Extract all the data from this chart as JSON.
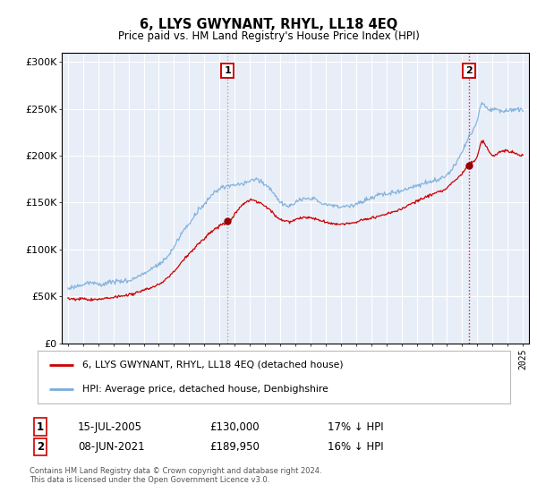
{
  "title": "6, LLYS GWYNANT, RHYL, LL18 4EQ",
  "subtitle": "Price paid vs. HM Land Registry's House Price Index (HPI)",
  "legend_label_red": "6, LLYS GWYNANT, RHYL, LL18 4EQ (detached house)",
  "legend_label_blue": "HPI: Average price, detached house, Denbighshire",
  "annotation1_date": "15-JUL-2005",
  "annotation1_price": "£130,000",
  "annotation1_hpi": "17% ↓ HPI",
  "annotation2_date": "08-JUN-2021",
  "annotation2_price": "£189,950",
  "annotation2_hpi": "16% ↓ HPI",
  "footnote": "Contains HM Land Registry data © Crown copyright and database right 2024.\nThis data is licensed under the Open Government Licence v3.0.",
  "background_color": "#ffffff",
  "plot_bg_color": "#e8eef8",
  "grid_color": "#ffffff",
  "red_color": "#cc0000",
  "blue_color": "#7aaddb",
  "vline1_color": "#aaaaaa",
  "vline2_color": "#cc0000",
  "ylim_min": 0,
  "ylim_max": 310000,
  "sale1_year": 2005.542,
  "sale1_price": 130000,
  "sale2_year": 2021.458,
  "sale2_price": 189950,
  "xstart": 1994.6,
  "xend": 2025.4
}
